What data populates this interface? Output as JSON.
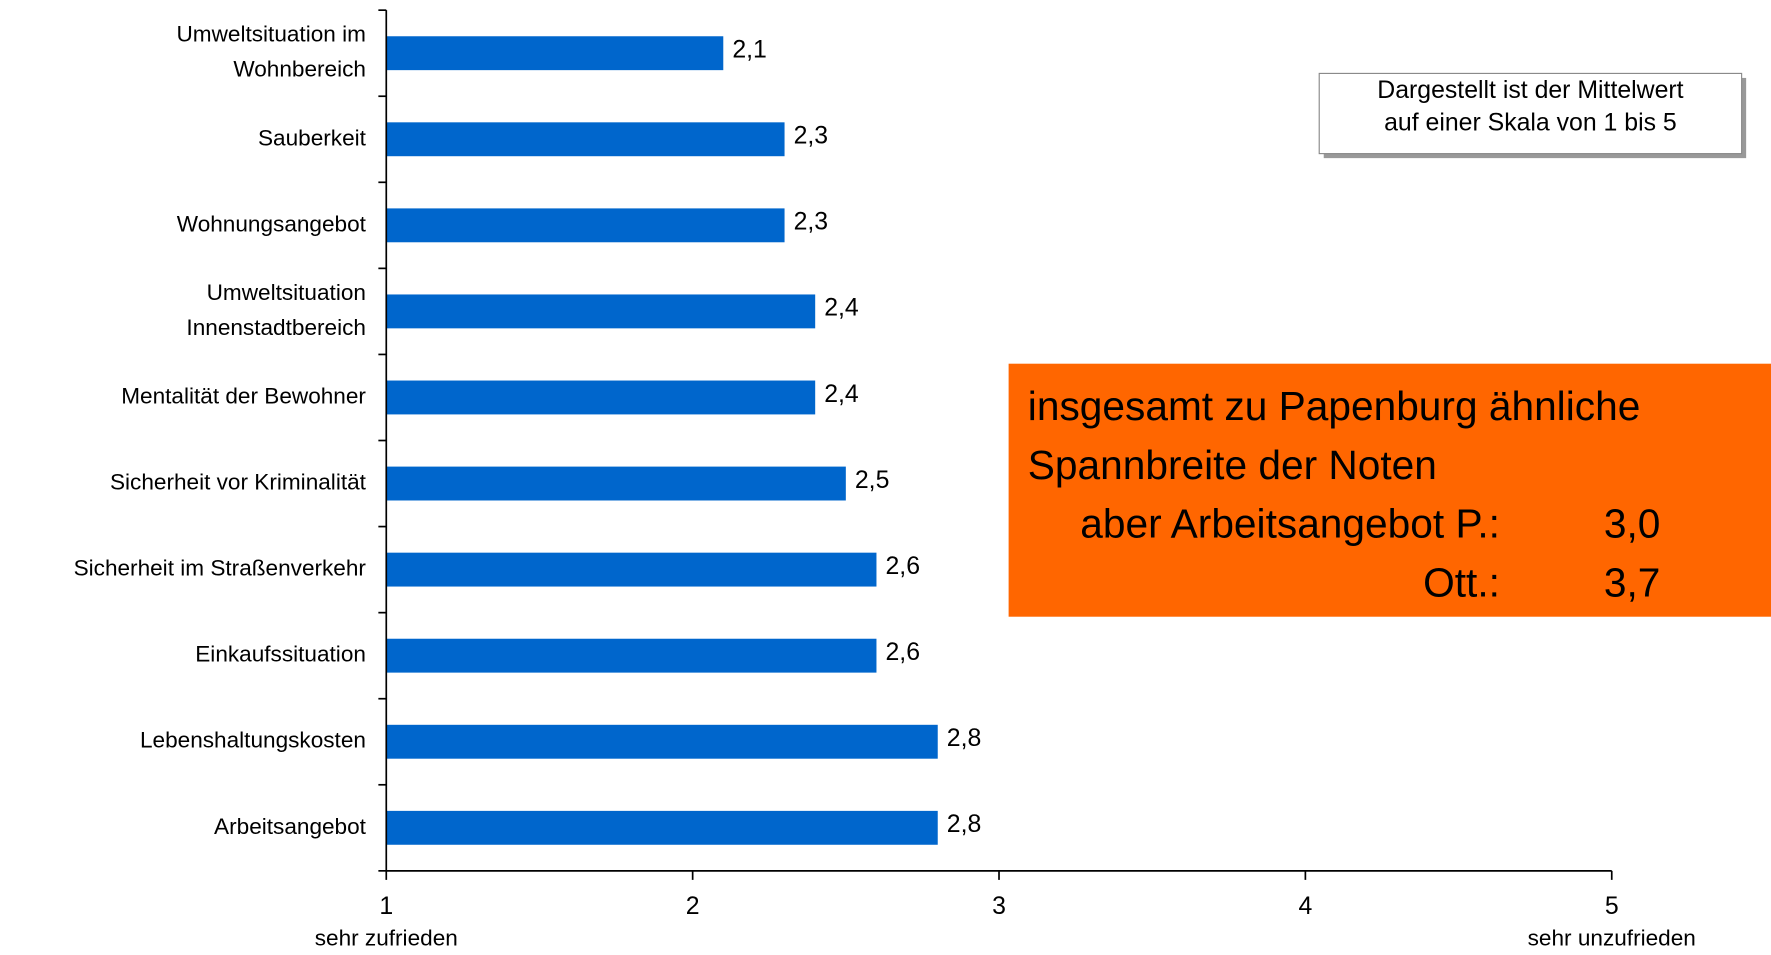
{
  "chart_data": {
    "type": "bar",
    "orientation": "horizontal",
    "categories": [
      "Umweltsituation im\nWohnbereich",
      "Sauberkeit",
      "Wohnungsangebot",
      "Umweltsituation\nInnenstadtbereich",
      "Mentalität der Bewohner",
      "Sicherheit vor Kriminalität",
      "Sicherheit im Straßenverkehr",
      "Einkaufssituation",
      "Lebenshaltungskosten",
      "Arbeitsangebot"
    ],
    "values": [
      2.1,
      2.3,
      2.3,
      2.4,
      2.4,
      2.5,
      2.6,
      2.6,
      2.8,
      2.8
    ],
    "value_labels": [
      "2,1",
      "2,3",
      "2,3",
      "2,4",
      "2,4",
      "2,5",
      "2,6",
      "2,6",
      "2,8",
      "2,8"
    ],
    "color": "#0066cc",
    "xlim": [
      1,
      5
    ],
    "xticks": [
      1,
      2,
      3,
      4,
      5
    ],
    "xtick_captions": [
      "sehr zufrieden",
      "sehr unzufrieden"
    ],
    "note": "Dargestellt ist der Mittelwert\nauf einer Skala von 1 bis 5",
    "callout": {
      "color": "#ff6600",
      "lines": [
        "insgesamt zu Papenburg ähnliche",
        "Spannbreite der Noten"
      ],
      "rows": [
        [
          "aber Arbeitsangebot P.:",
          "3,0"
        ],
        [
          "Ott.:",
          "3,7"
        ]
      ]
    }
  }
}
